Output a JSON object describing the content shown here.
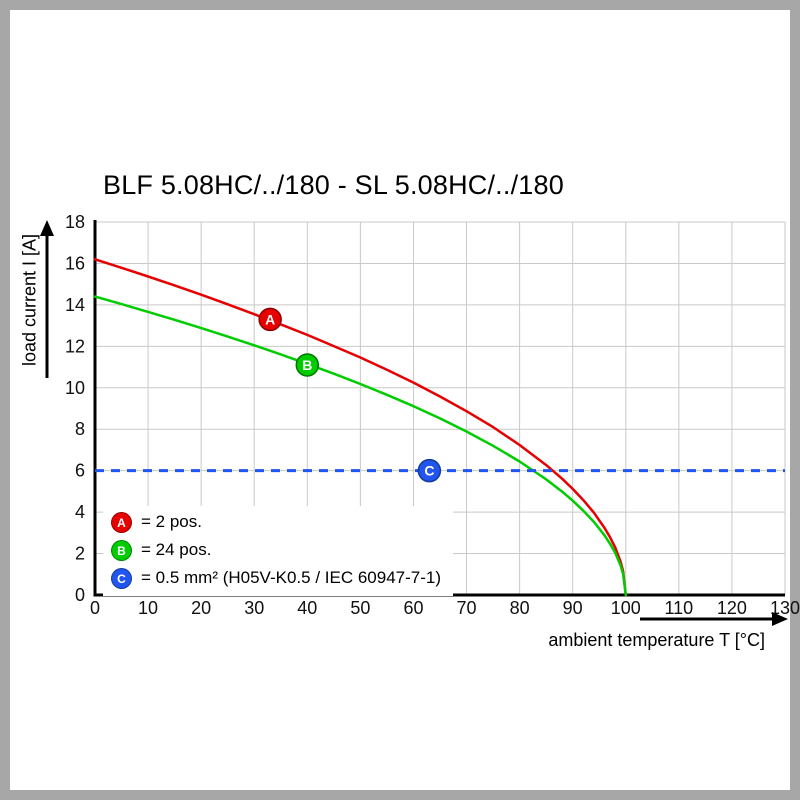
{
  "chart_data": {
    "type": "line",
    "title": "BLF 5.08HC/../180 - SL 5.08HC/../180",
    "xlabel": "ambient temperature T [°C]",
    "ylabel": "load current I [A]",
    "xlim": [
      0,
      130
    ],
    "ylim": [
      0,
      18
    ],
    "xtick_step": 10,
    "ytick_step": 2,
    "grid": true,
    "grid_color": "#c9c9c9",
    "legend_position": "bottom-left-inside",
    "series": [
      {
        "name": "A = 2 pos.",
        "color": "#e60000",
        "style": "solid",
        "points": [
          [
            0,
            16.2
          ],
          [
            5,
            15.79
          ],
          [
            10,
            15.37
          ],
          [
            15,
            14.94
          ],
          [
            20,
            14.49
          ],
          [
            25,
            14.03
          ],
          [
            30,
            13.55
          ],
          [
            35,
            13.06
          ],
          [
            40,
            12.55
          ],
          [
            45,
            12.01
          ],
          [
            50,
            11.46
          ],
          [
            55,
            10.87
          ],
          [
            60,
            10.25
          ],
          [
            65,
            9.58
          ],
          [
            70,
            8.87
          ],
          [
            75,
            8.1
          ],
          [
            80,
            7.24
          ],
          [
            85,
            6.27
          ],
          [
            88,
            5.61
          ],
          [
            90,
            5.12
          ],
          [
            92,
            4.58
          ],
          [
            94,
            3.97
          ],
          [
            96,
            3.24
          ],
          [
            97,
            2.81
          ],
          [
            98,
            2.29
          ],
          [
            99,
            1.62
          ],
          [
            99.5,
            1.15
          ],
          [
            100,
            0
          ]
        ]
      },
      {
        "name": "B = 24 pos.",
        "color": "#00cc00",
        "style": "solid",
        "points": [
          [
            0,
            14.4
          ],
          [
            5,
            14.04
          ],
          [
            10,
            13.66
          ],
          [
            15,
            13.28
          ],
          [
            20,
            12.88
          ],
          [
            25,
            12.47
          ],
          [
            30,
            12.05
          ],
          [
            35,
            11.61
          ],
          [
            40,
            11.15
          ],
          [
            45,
            10.68
          ],
          [
            50,
            10.18
          ],
          [
            55,
            9.66
          ],
          [
            60,
            9.11
          ],
          [
            65,
            8.52
          ],
          [
            70,
            7.89
          ],
          [
            75,
            7.2
          ],
          [
            80,
            6.44
          ],
          [
            85,
            5.58
          ],
          [
            88,
            4.99
          ],
          [
            90,
            4.55
          ],
          [
            92,
            4.07
          ],
          [
            94,
            3.53
          ],
          [
            96,
            2.88
          ],
          [
            97,
            2.49
          ],
          [
            98,
            2.04
          ],
          [
            99,
            1.44
          ],
          [
            99.5,
            1.02
          ],
          [
            100,
            0
          ]
        ]
      },
      {
        "name": "C = 0.5 mm² (H05V-K0.5 / IEC 60947-7-1)",
        "color": "#2255ee",
        "style": "dashed",
        "type": "hline",
        "y": 6
      }
    ],
    "markers": [
      {
        "label": "A",
        "x": 33,
        "y": 13.3,
        "color": "#e60000",
        "edge": "#8f0000"
      },
      {
        "label": "B",
        "x": 40,
        "y": 11.1,
        "color": "#00cc00",
        "edge": "#007700"
      },
      {
        "label": "C",
        "x": 63,
        "y": 6,
        "color": "#2255ee",
        "edge": "#103a99"
      }
    ],
    "legend": [
      {
        "letter": "A",
        "label": "= 2 pos.",
        "color": "#e60000"
      },
      {
        "letter": "B",
        "label": "= 24 pos.",
        "color": "#00cc00"
      },
      {
        "letter": "C",
        "label": "= 0.5 mm² (H05V-K0.5 / IEC 60947-7-1)",
        "color": "#2255ee"
      }
    ]
  }
}
